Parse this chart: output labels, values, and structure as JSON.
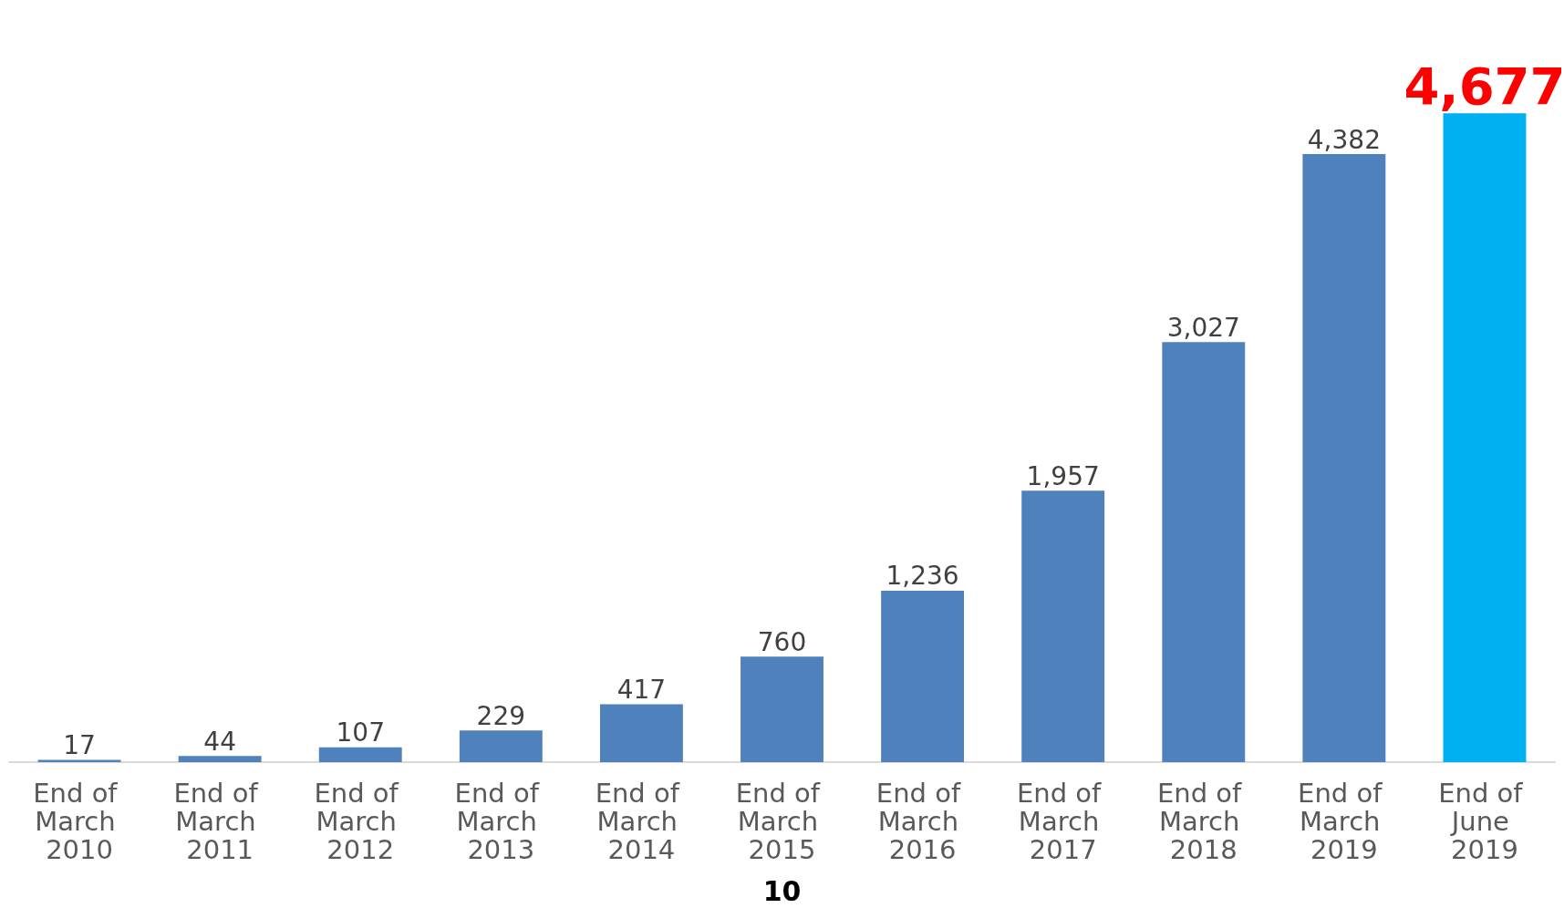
{
  "chart_data": {
    "type": "bar",
    "categories": [
      "End of March 2010",
      "End of March 2011",
      "End of March 2012",
      "End of March 2013",
      "End of March 2014",
      "End of March 2015",
      "End of March 2016",
      "End of March 2017",
      "End of March 2018",
      "End of March 2019",
      "End of June 2019"
    ],
    "values": [
      17,
      44,
      107,
      229,
      417,
      760,
      1236,
      1957,
      3027,
      4382,
      4677
    ],
    "value_labels": [
      "17",
      "44",
      "107",
      "229",
      "417",
      "760",
      "1,236",
      "1,957",
      "3,027",
      "4,382",
      "4,677"
    ],
    "colors": [
      "#4f81bd",
      "#4f81bd",
      "#4f81bd",
      "#4f81bd",
      "#4f81bd",
      "#4f81bd",
      "#4f81bd",
      "#4f81bd",
      "#4f81bd",
      "#4f81bd",
      "#00b0f0"
    ],
    "annotations": [
      "10"
    ]
  }
}
